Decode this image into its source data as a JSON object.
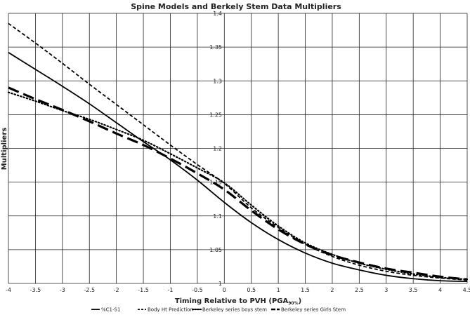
{
  "chart_data": {
    "type": "line",
    "title": "Spine Models and Berkely Stem Data Multipliers",
    "xlabel": "Timing Relative to PVH (PGA",
    "xlabel_sub": "90%",
    "xlabel_suffix": ")",
    "ylabel": "Multipliers",
    "xlim": [
      -4,
      4.5
    ],
    "ylim": [
      1,
      1.4
    ],
    "x_ticks": [
      -4,
      -3.5,
      -3,
      -2.5,
      -2,
      -1.5,
      -1,
      -0.5,
      0,
      0.5,
      1,
      1.5,
      2,
      2.5,
      3,
      3.5,
      4,
      4.5
    ],
    "y_ticks": [
      1,
      1.05,
      1.1,
      1.15,
      1.2,
      1.25,
      1.3,
      1.35,
      1.4
    ],
    "grid": true,
    "legend_position": "bottom",
    "series": [
      {
        "name": "%C1-S1",
        "style": "solid",
        "points": [
          [
            -4,
            1.342
          ],
          [
            -3.5,
            1.317
          ],
          [
            -3,
            1.292
          ],
          [
            -2.5,
            1.266
          ],
          [
            -2,
            1.238
          ],
          [
            -1.5,
            1.21
          ],
          [
            -1,
            1.183
          ],
          [
            -0.5,
            1.153
          ],
          [
            0,
            1.12
          ],
          [
            0.5,
            1.09
          ],
          [
            1,
            1.065
          ],
          [
            1.5,
            1.045
          ],
          [
            2,
            1.03
          ],
          [
            2.5,
            1.02
          ],
          [
            3,
            1.012
          ],
          [
            3.5,
            1.007
          ],
          [
            4,
            1.004
          ],
          [
            4.5,
            1.003
          ]
        ]
      },
      {
        "name": "Body Ht Prediction",
        "style": "dashed",
        "points": [
          [
            -4,
            1.385
          ],
          [
            -3.5,
            1.356
          ],
          [
            -3,
            1.326
          ],
          [
            -2.5,
            1.295
          ],
          [
            -2,
            1.265
          ],
          [
            -1.5,
            1.235
          ],
          [
            -1,
            1.205
          ],
          [
            -0.5,
            1.176
          ],
          [
            0,
            1.148
          ],
          [
            0.5,
            1.112
          ],
          [
            1,
            1.083
          ],
          [
            1.5,
            1.058
          ],
          [
            2,
            1.04
          ],
          [
            2.5,
            1.027
          ],
          [
            3,
            1.018
          ],
          [
            3.5,
            1.012
          ],
          [
            4,
            1.008
          ],
          [
            4.5,
            1.005
          ]
        ]
      },
      {
        "name": "Berkeley series boys stem",
        "style": "dotted",
        "points": [
          [
            -4,
            1.283
          ],
          [
            -3.5,
            1.27
          ],
          [
            -3,
            1.256
          ],
          [
            -2.5,
            1.243
          ],
          [
            -2,
            1.228
          ],
          [
            -1.5,
            1.212
          ],
          [
            -1,
            1.192
          ],
          [
            -0.5,
            1.171
          ],
          [
            0,
            1.149
          ],
          [
            0.5,
            1.116
          ],
          [
            1,
            1.085
          ],
          [
            1.5,
            1.06
          ],
          [
            2,
            1.043
          ],
          [
            2.5,
            1.03
          ],
          [
            3,
            1.021
          ],
          [
            3.5,
            1.014
          ],
          [
            4,
            1.009
          ],
          [
            4.5,
            1.006
          ]
        ]
      },
      {
        "name": "Berkeley series Girls Stem",
        "style": "longdash-bold",
        "points": [
          [
            -4,
            1.29
          ],
          [
            -3.5,
            1.273
          ],
          [
            -3,
            1.257
          ],
          [
            -2.5,
            1.24
          ],
          [
            -2,
            1.222
          ],
          [
            -1.5,
            1.205
          ],
          [
            -1,
            1.185
          ],
          [
            -0.5,
            1.163
          ],
          [
            0,
            1.139
          ],
          [
            0.5,
            1.108
          ],
          [
            1,
            1.08
          ],
          [
            1.5,
            1.058
          ],
          [
            2,
            1.042
          ],
          [
            2.5,
            1.031
          ],
          [
            3,
            1.022
          ],
          [
            3.5,
            1.016
          ],
          [
            4,
            1.01
          ],
          [
            4.5,
            1.006
          ]
        ]
      }
    ]
  }
}
